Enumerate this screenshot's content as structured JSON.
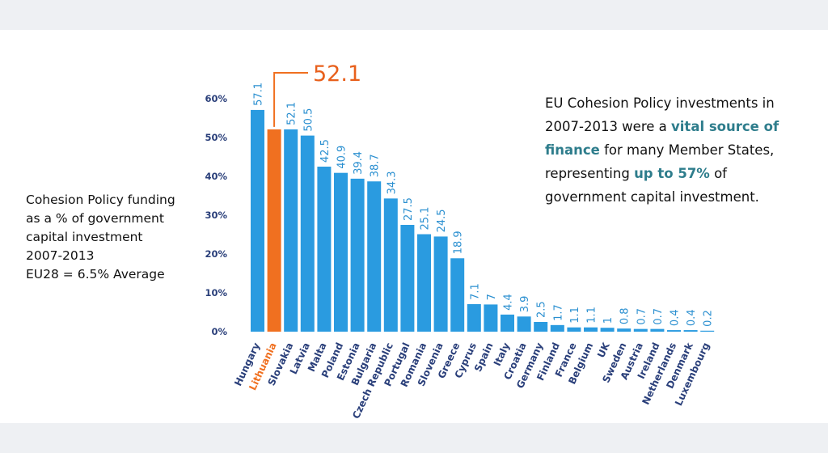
{
  "left_caption": {
    "line1": "Cohesion Policy funding",
    "line2": "as a % of government",
    "line3": "capital investment",
    "line4": "2007-2013",
    "line5": "EU28 = 6.5% Average"
  },
  "right_text": {
    "p1": "EU Cohesion Policy investments in 2007-2013 were a ",
    "h1": "vital source of finance",
    "p2": " for many Member States, representing ",
    "h2": "up to 57%",
    "p3": " of government capital investment."
  },
  "colors": {
    "bar": "#2a9be0",
    "highlight": "#f07020",
    "axis_text": "#2a3f7a"
  },
  "chart_data": {
    "type": "bar",
    "categories": [
      "Hungary",
      "Lithuania",
      "Slovakia",
      "Latvia",
      "Malta",
      "Poland",
      "Estonia",
      "Bulgaria",
      "Czech Republic",
      "Portugal",
      "Romania",
      "Slovenia",
      "Greece",
      "Cyprus",
      "Spain",
      "Italy",
      "Croatia",
      "Germany",
      "Finland",
      "France",
      "Belgium",
      "UK",
      "Sweden",
      "Austria",
      "Ireland",
      "Netherlands",
      "Denmark",
      "Luxembourg"
    ],
    "values": [
      57.1,
      52.1,
      52.1,
      50.5,
      42.5,
      40.9,
      39.4,
      38.7,
      34.3,
      27.5,
      25.1,
      24.5,
      18.9,
      7.1,
      7,
      4.4,
      3.9,
      2.5,
      1.7,
      1.1,
      1.1,
      1,
      0.8,
      0.7,
      0.7,
      0.4,
      0.4,
      0.2
    ],
    "value_labels": [
      "57.1",
      "",
      "52.1",
      "50.5",
      "42.5",
      "40.9",
      "39.4",
      "38.7",
      "34.3",
      "27.5",
      "25.1",
      "24.5",
      "18.9",
      "7.1",
      "7",
      "4.4",
      "3.9",
      "2.5",
      "1.7",
      "1.1",
      "1.1",
      "1",
      "0.8",
      "0.7",
      "0.7",
      "0.4",
      "0.4",
      "0.2"
    ],
    "highlight_index": 1,
    "highlight_label": "52.1",
    "ylim": [
      0,
      60
    ],
    "yticks": [
      0,
      10,
      20,
      30,
      40,
      50,
      60
    ],
    "ytick_labels": [
      "0%",
      "10%",
      "20%",
      "30%",
      "40%",
      "50%",
      "60%"
    ],
    "grid": false
  }
}
